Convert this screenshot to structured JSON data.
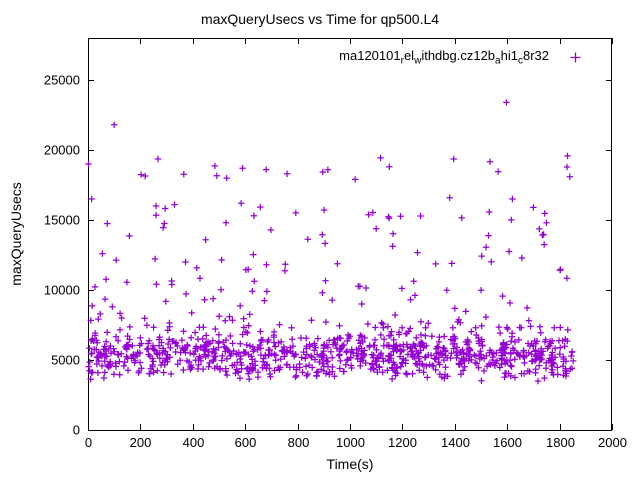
{
  "chart_data": {
    "type": "scatter",
    "title": "maxQueryUsecs vs Time for qp500.L4",
    "xlabel": "Time(s)",
    "ylabel": "maxQueryUsecs",
    "xlim": [
      0,
      2000
    ],
    "ylim": [
      0,
      28000
    ],
    "xticks": [
      0,
      200,
      400,
      600,
      800,
      1000,
      1200,
      1400,
      1600,
      1800,
      2000
    ],
    "yticks": [
      0,
      5000,
      10000,
      15000,
      20000,
      25000
    ],
    "grid": false,
    "legend_position": "top-right-inside",
    "series": [
      {
        "name": "ma120101_rel_withdbg.cz12b_ahi1_c8r32",
        "label_segments": [
          {
            "text": "ma120101"
          },
          {
            "text": "r",
            "sub": true
          },
          {
            "text": "el"
          },
          {
            "text": "w",
            "sub": true
          },
          {
            "text": "ithdbg.cz12b"
          },
          {
            "text": "a",
            "sub": true
          },
          {
            "text": "hi1"
          },
          {
            "text": "c",
            "sub": true
          },
          {
            "text": "8r32"
          }
        ],
        "marker": "+",
        "color": "#9400D3",
        "point_count_estimate": 1050,
        "x_range": [
          2,
          1855
        ],
        "bands": [
          {
            "y_min": 3400,
            "y_max": 7300,
            "fraction": 0.84,
            "bias_power": 1
          },
          {
            "y_min": 7300,
            "y_max": 15000,
            "fraction": 0.125,
            "bias_power": 2.2
          },
          {
            "y_min": 15000,
            "y_max": 19600,
            "fraction": 0.035,
            "bias_power": 1.7
          }
        ],
        "outliers": [
          [
            100,
            21800
          ],
          [
            1597,
            23400
          ],
          [
            2,
            19000
          ],
          [
            14,
            16500
          ],
          [
            330,
            16100
          ],
          [
            260,
            16000
          ],
          [
            590,
            18700
          ],
          [
            680,
            18600
          ],
          [
            760,
            18300
          ],
          [
            1020,
            17900
          ],
          [
            1150,
            18800
          ],
          [
            1620,
            16500
          ],
          [
            1700,
            15900
          ],
          [
            55,
            12600
          ],
          [
            1750,
            14800
          ]
        ],
        "prng_seed": 1234567
      }
    ]
  }
}
